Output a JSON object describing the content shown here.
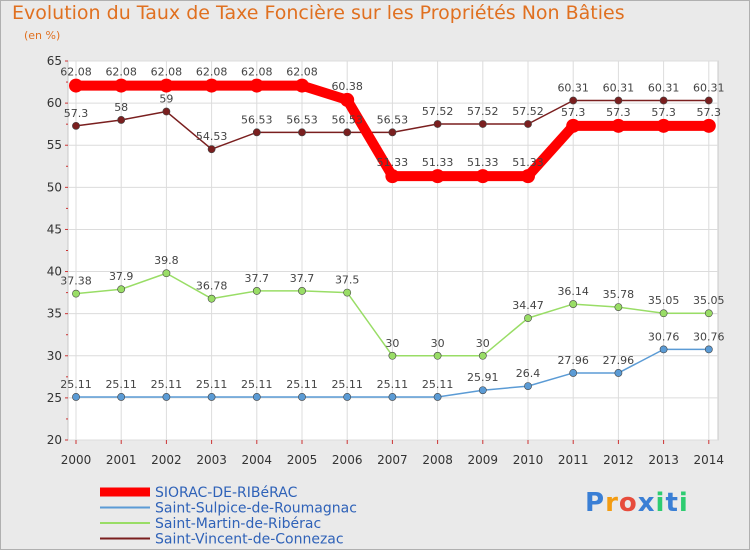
{
  "chart_data": {
    "type": "line",
    "title": "Evolution du Taux de Taxe Foncière sur les Propriétés Non Bâties",
    "subtitle": "(en %)",
    "xlabel": "",
    "ylabel": "(en %)",
    "ylim": [
      20,
      65
    ],
    "yticks": [
      20,
      25,
      30,
      35,
      40,
      45,
      50,
      55,
      60,
      65
    ],
    "categories": [
      "2000",
      "2001",
      "2002",
      "2003",
      "2004",
      "2005",
      "2006",
      "2007",
      "2008",
      "2009",
      "2010",
      "2011",
      "2012",
      "2013",
      "2014"
    ],
    "grid": true,
    "series": [
      {
        "name": "SIORAC-DE-RIBéRAC",
        "color": "#ff0000",
        "thick": true,
        "values": [
          62.08,
          62.08,
          62.08,
          62.08,
          62.08,
          62.08,
          60.38,
          51.33,
          51.33,
          51.33,
          51.33,
          57.3,
          57.3,
          57.3,
          57.3
        ],
        "labels": [
          "62.08",
          "62.08",
          "62.08",
          "62.08",
          "62.08",
          "62.08",
          "60.38",
          "51.33",
          "51.33",
          "51.33",
          "51.33",
          "57.3",
          "57.3",
          "57.3",
          "57.3"
        ]
      },
      {
        "name": "Saint-Sulpice-de-Roumagnac",
        "color": "#5b9bd5",
        "thick": false,
        "values": [
          25.11,
          25.11,
          25.11,
          25.11,
          25.11,
          25.11,
          25.11,
          25.11,
          25.11,
          25.91,
          26.4,
          27.96,
          27.96,
          30.76,
          30.76
        ],
        "labels": [
          "25.11",
          "25.11",
          "25.11",
          "25.11",
          "25.11",
          "25.11",
          "25.11",
          "25.11",
          "25.11",
          "25.91",
          "26.4",
          "27.96",
          "27.96",
          "30.76",
          "30.76"
        ]
      },
      {
        "name": "Saint-Martin-de-Ribérac",
        "color": "#99dd66",
        "thick": false,
        "values": [
          37.38,
          37.9,
          39.8,
          36.78,
          37.7,
          37.7,
          37.5,
          30,
          30,
          30,
          34.47,
          36.14,
          35.78,
          35.05,
          35.05
        ],
        "labels": [
          "37.38",
          "37.9",
          "39.8",
          "36.78",
          "37.7",
          "37.7",
          "37.5",
          "30",
          "30",
          "30",
          "34.47",
          "36.14",
          "35.78",
          "35.05",
          "35.05"
        ]
      },
      {
        "name": "Saint-Vincent-de-Connezac",
        "color": "#7a1f1f",
        "thick": false,
        "values": [
          57.3,
          58,
          59,
          54.53,
          56.53,
          56.53,
          56.53,
          56.53,
          57.52,
          57.52,
          57.52,
          60.31,
          60.31,
          60.31,
          60.31
        ],
        "labels": [
          "57.3",
          "58",
          "59",
          "54.53",
          "56.53",
          "56.53",
          "56.53",
          "56.53",
          "57.52",
          "57.52",
          "57.52",
          "60.31",
          "60.31",
          "60.31",
          "60.31"
        ]
      }
    ]
  },
  "logo": {
    "text": "Proxiti",
    "colors": [
      "#3a7fd5",
      "#f39c12",
      "#e74c3c",
      "#3a7fd5",
      "#2ecc71",
      "#3a7fd5",
      "#2ecc71"
    ]
  }
}
